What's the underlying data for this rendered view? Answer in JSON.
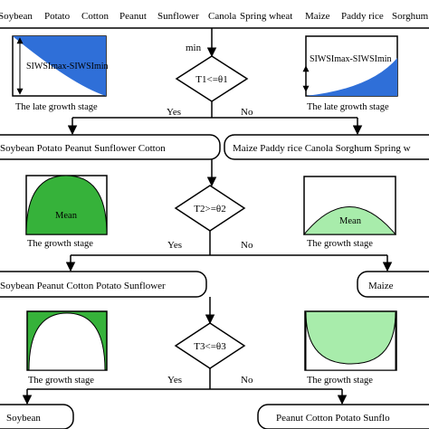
{
  "top_crops": [
    "Soybean",
    "Potato",
    "Cotton",
    "Peanut",
    "Sunflower",
    "Canola",
    "Spring wheat",
    "Maize",
    "Paddy rice",
    "Sorghum"
  ],
  "min_label": "min",
  "level1": {
    "left_panel": {
      "label": "SIWSImax-SIWSImin",
      "caption": "The late growth stage"
    },
    "right_panel": {
      "label": "SIWSImax-SIWSImin",
      "caption": "The late growth stage"
    },
    "decision": "T1<=θ1",
    "yes": "Yes",
    "no": "No",
    "left_group": "Soybean Potato Peanut Sunflower Cotton",
    "right_group": "Maize Paddy rice Canola Sorghum Spring w"
  },
  "level2": {
    "left_panel": {
      "label": "Mean",
      "caption": "The growth stage"
    },
    "right_panel": {
      "label": "Mean",
      "caption": "The growth stage"
    },
    "decision": "T2>=θ2",
    "yes": "Yes",
    "no": "No",
    "left_group": "Soybean Peanut Cotton Potato Sunflower",
    "right_group": "Maize"
  },
  "level3": {
    "left_panel": {
      "caption": "The growth stage"
    },
    "right_panel": {
      "caption": "The growth stage"
    },
    "decision": "T3<=θ3",
    "yes": "Yes",
    "no": "No",
    "left_group": "Soybean",
    "right_group": "Peanut Cotton Potato Sunflo"
  },
  "colors": {
    "blue_fill": "#2f6fd8",
    "green_dark": "#36b23a",
    "green_light": "#a8ecab"
  }
}
